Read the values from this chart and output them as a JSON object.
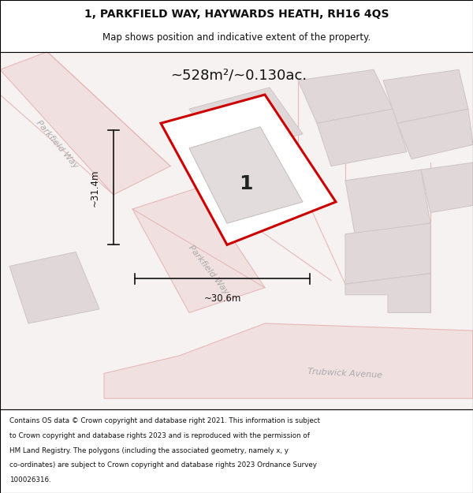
{
  "title_line1": "1, PARKFIELD WAY, HAYWARDS HEATH, RH16 4QS",
  "title_line2": "Map shows position and indicative extent of the property.",
  "area_text": "~528m²/~0.130ac.",
  "label_number": "1",
  "dim_vertical": "~31.4m",
  "dim_horizontal": "~30.6m",
  "street_label_1": "Parkfield Way",
  "street_label_2": "Parkfield Way",
  "street_label_3": "Trubwick Avenue",
  "footer_lines": [
    "Contains OS data © Crown copyright and database right 2021. This information is subject",
    "to Crown copyright and database rights 2023 and is reproduced with the permission of",
    "HM Land Registry. The polygons (including the associated geometry, namely x, y",
    "co-ordinates) are subject to Crown copyright and database rights 2023 Ordnance Survey",
    "100026316."
  ],
  "map_bg": "#f7f2f2",
  "road_fill": "#f0e0e0",
  "road_color": "#e8b8b8",
  "building_fill": "#e0d8d8",
  "building_edge": "#d0c8c8",
  "highlight_fill": "#ffffff",
  "highlight_edge": "#cc0000",
  "inner_fill": "#e2dcdc",
  "inner_edge": "#c8c0c0"
}
